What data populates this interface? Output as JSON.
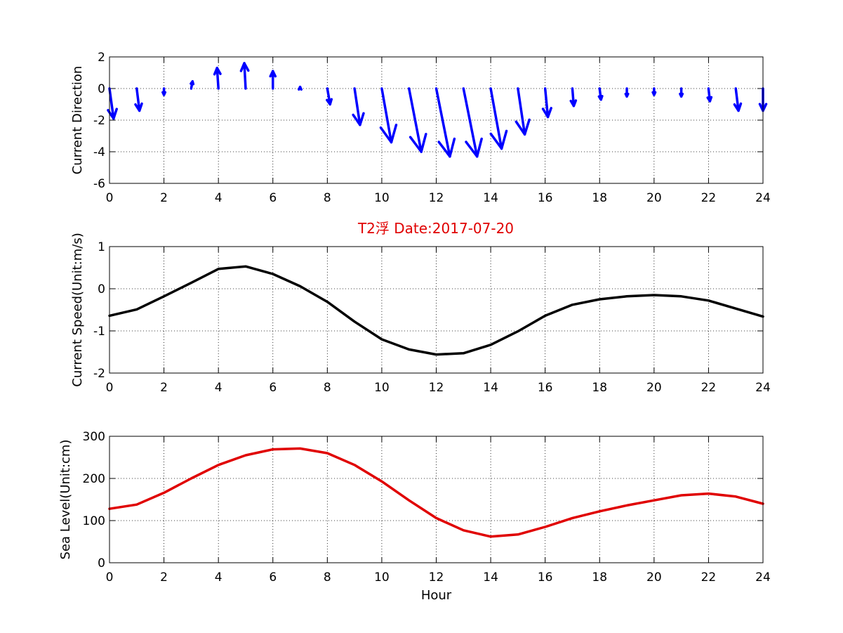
{
  "figure": {
    "title": "T2浮    Date:2017-07-20",
    "title_color": "#e00000"
  },
  "chart_data": [
    {
      "type": "quiver",
      "name": "current-direction",
      "ylabel": "Current Direction",
      "xlabel": "",
      "xlim": [
        0,
        24
      ],
      "ylim": [
        -6,
        2
      ],
      "xticks": [
        0,
        2,
        4,
        6,
        8,
        10,
        12,
        14,
        16,
        18,
        20,
        22,
        24
      ],
      "yticks": [
        -6,
        -4,
        -2,
        0,
        2
      ],
      "grid": true,
      "color": "#0000ff",
      "vectors": [
        {
          "x": 0,
          "u": 0.15,
          "v": -1.9
        },
        {
          "x": 1,
          "u": 0.1,
          "v": -1.4
        },
        {
          "x": 2,
          "u": 0.0,
          "v": -0.4
        },
        {
          "x": 3,
          "u": 0.05,
          "v": 0.45
        },
        {
          "x": 4,
          "u": -0.05,
          "v": 1.3
        },
        {
          "x": 5,
          "u": -0.05,
          "v": 1.6
        },
        {
          "x": 6,
          "u": 0.0,
          "v": 1.1
        },
        {
          "x": 7,
          "u": 0.0,
          "v": 0.1
        },
        {
          "x": 8,
          "u": 0.1,
          "v": -1.0
        },
        {
          "x": 9,
          "u": 0.2,
          "v": -2.3
        },
        {
          "x": 10,
          "u": 0.35,
          "v": -3.4
        },
        {
          "x": 11,
          "u": 0.45,
          "v": -4.0
        },
        {
          "x": 12,
          "u": 0.5,
          "v": -4.3
        },
        {
          "x": 13,
          "u": 0.5,
          "v": -4.3
        },
        {
          "x": 14,
          "u": 0.4,
          "v": -3.8
        },
        {
          "x": 15,
          "u": 0.25,
          "v": -2.9
        },
        {
          "x": 16,
          "u": 0.1,
          "v": -1.8
        },
        {
          "x": 17,
          "u": 0.05,
          "v": -1.1
        },
        {
          "x": 18,
          "u": 0.05,
          "v": -0.7
        },
        {
          "x": 19,
          "u": 0.0,
          "v": -0.5
        },
        {
          "x": 20,
          "u": 0.0,
          "v": -0.4
        },
        {
          "x": 21,
          "u": 0.0,
          "v": -0.5
        },
        {
          "x": 22,
          "u": 0.05,
          "v": -0.8
        },
        {
          "x": 23,
          "u": 0.1,
          "v": -1.4
        },
        {
          "x": 24,
          "u": 0.0,
          "v": -1.4
        }
      ]
    },
    {
      "type": "line",
      "name": "current-speed",
      "ylabel": "Current Speed(Unit:m/s)",
      "xlabel": "",
      "xlim": [
        0,
        24
      ],
      "ylim": [
        -2,
        1
      ],
      "xticks": [
        0,
        2,
        4,
        6,
        8,
        10,
        12,
        14,
        16,
        18,
        20,
        22,
        24
      ],
      "yticks": [
        -2,
        -1,
        0,
        1
      ],
      "grid": true,
      "color": "#000000",
      "x": [
        0,
        1,
        2,
        3,
        4,
        5,
        6,
        7,
        8,
        9,
        10,
        11,
        12,
        13,
        14,
        15,
        16,
        17,
        18,
        19,
        20,
        21,
        22,
        23,
        24
      ],
      "y": [
        -0.64,
        -0.49,
        -0.18,
        0.14,
        0.47,
        0.53,
        0.35,
        0.06,
        -0.31,
        -0.78,
        -1.2,
        -1.44,
        -1.56,
        -1.53,
        -1.33,
        -1.01,
        -0.64,
        -0.38,
        -0.25,
        -0.18,
        -0.15,
        -0.18,
        -0.28,
        -0.47,
        -0.66
      ]
    },
    {
      "type": "line",
      "name": "sea-level",
      "ylabel": "Sea Level(Unit:cm)",
      "xlabel": "Hour",
      "xlim": [
        0,
        24
      ],
      "ylim": [
        0,
        300
      ],
      "xticks": [
        0,
        2,
        4,
        6,
        8,
        10,
        12,
        14,
        16,
        18,
        20,
        22,
        24
      ],
      "yticks": [
        0,
        100,
        200,
        300
      ],
      "grid": true,
      "color": "#e00000",
      "x": [
        0,
        1,
        2,
        3,
        4,
        5,
        6,
        7,
        8,
        9,
        10,
        11,
        12,
        13,
        14,
        15,
        16,
        17,
        18,
        19,
        20,
        21,
        22,
        23,
        24
      ],
      "y": [
        128,
        138,
        166,
        200,
        232,
        255,
        269,
        271,
        260,
        232,
        193,
        148,
        106,
        77,
        62,
        67,
        85,
        106,
        122,
        136,
        148,
        160,
        164,
        157,
        140
      ]
    }
  ]
}
